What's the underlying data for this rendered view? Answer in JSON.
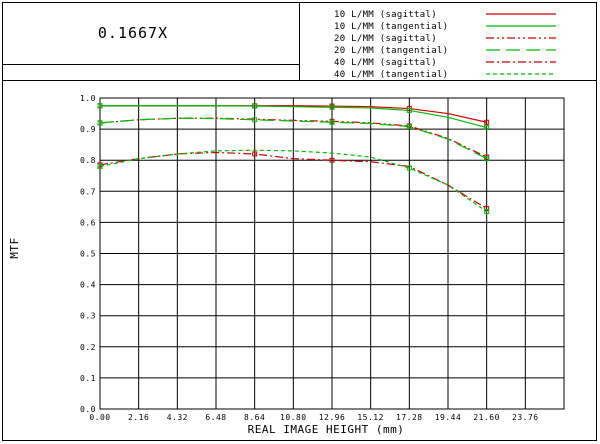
{
  "header": {
    "zoom_label": "0.1667X"
  },
  "chart_data": {
    "type": "line",
    "xlabel": "REAL IMAGE HEIGHT (mm)",
    "ylabel": "MTF",
    "xlim": [
      0,
      25.92
    ],
    "ylim": [
      0,
      1.0
    ],
    "xticks": [
      "0.00",
      "2.16",
      "4.32",
      "6.48",
      "8.64",
      "10.80",
      "12.96",
      "15.12",
      "17.28",
      "19.44",
      "21.60",
      "23.76"
    ],
    "yticks": [
      "0.0",
      "0.1",
      "0.2",
      "0.3",
      "0.4",
      "0.5",
      "0.6",
      "0.7",
      "0.8",
      "0.9",
      "1.0"
    ],
    "grid": true,
    "legend_position": "top-right",
    "series": [
      {
        "name": "10 L/MM (sagittal)",
        "color": "#cc0000",
        "dash": "solid",
        "x": [
          0.0,
          2.16,
          4.32,
          6.48,
          8.64,
          10.8,
          12.96,
          15.12,
          17.28,
          19.44,
          21.6
        ],
        "y": [
          0.975,
          0.975,
          0.975,
          0.975,
          0.975,
          0.975,
          0.974,
          0.972,
          0.966,
          0.95,
          0.922
        ]
      },
      {
        "name": "10 L/MM (tangential)",
        "color": "#00bb00",
        "dash": "solid",
        "x": [
          0.0,
          2.16,
          4.32,
          6.48,
          8.64,
          10.8,
          12.96,
          15.12,
          17.28,
          19.44,
          21.6
        ],
        "y": [
          0.975,
          0.975,
          0.975,
          0.975,
          0.974,
          0.972,
          0.97,
          0.968,
          0.96,
          0.938,
          0.905
        ]
      },
      {
        "name": "20 L/MM (sagittal)",
        "color": "#cc0000",
        "dash": "dashdotdot",
        "x": [
          0.0,
          2.16,
          4.32,
          6.48,
          8.64,
          10.8,
          12.96,
          15.12,
          17.28,
          19.44,
          21.6
        ],
        "y": [
          0.92,
          0.93,
          0.935,
          0.935,
          0.932,
          0.928,
          0.925,
          0.92,
          0.91,
          0.87,
          0.81
        ]
      },
      {
        "name": "20 L/MM (tangential)",
        "color": "#00bb00",
        "dash": "longdash",
        "x": [
          0.0,
          2.16,
          4.32,
          6.48,
          8.64,
          10.8,
          12.96,
          15.12,
          17.28,
          19.44,
          21.6
        ],
        "y": [
          0.92,
          0.93,
          0.935,
          0.934,
          0.93,
          0.926,
          0.922,
          0.918,
          0.908,
          0.868,
          0.805
        ]
      },
      {
        "name": "40 L/MM (sagittal)",
        "color": "#cc0000",
        "dash": "dashdot",
        "x": [
          0.0,
          2.16,
          4.32,
          6.48,
          8.64,
          10.8,
          12.96,
          15.12,
          17.28,
          19.44,
          21.6
        ],
        "y": [
          0.785,
          0.805,
          0.82,
          0.825,
          0.82,
          0.805,
          0.8,
          0.795,
          0.78,
          0.72,
          0.645
        ]
      },
      {
        "name": "40 L/MM (tangential)",
        "color": "#00bb00",
        "dash": "shortdash",
        "x": [
          0.0,
          2.16,
          4.32,
          6.48,
          8.64,
          10.8,
          12.96,
          15.12,
          17.28,
          19.44,
          21.6
        ],
        "y": [
          0.78,
          0.805,
          0.82,
          0.83,
          0.832,
          0.83,
          0.823,
          0.81,
          0.775,
          0.72,
          0.635
        ]
      }
    ],
    "markers": [
      {
        "series": 0,
        "x": [
          0.0,
          8.64,
          12.96,
          17.28,
          21.6
        ]
      },
      {
        "series": 1,
        "x": [
          0.0,
          8.64,
          12.96,
          17.28,
          21.6
        ]
      },
      {
        "series": 2,
        "x": [
          0.0,
          12.96,
          17.28,
          21.6
        ]
      },
      {
        "series": 3,
        "x": [
          0.0,
          8.64,
          12.96,
          17.28,
          21.6
        ]
      },
      {
        "series": 4,
        "x": [
          0.0,
          8.64,
          12.96,
          21.6
        ]
      },
      {
        "series": 5,
        "x": [
          0.0,
          17.28,
          21.6
        ]
      }
    ]
  }
}
